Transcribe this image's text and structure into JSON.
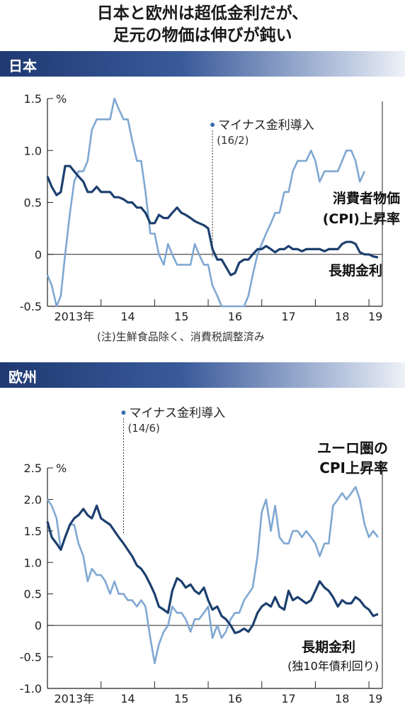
{
  "title_line1": "日本と欧州は超低金利だが、",
  "title_line2": "足元の物価は伸びが鈍い",
  "colors": {
    "band_dark": "#1f3a73",
    "cpi": "#7fa8d2",
    "rate": "#1c3f6e",
    "axis": "#222222"
  },
  "chart_data": [
    {
      "type": "line",
      "section_label": "日本",
      "unit": "%",
      "ylim": [
        -0.5,
        1.5
      ],
      "yticks": [
        "1.5",
        "1.0",
        "0.5",
        "0",
        "-0.5"
      ],
      "ytick_values": [
        1.5,
        1.0,
        0.5,
        0,
        -0.5
      ],
      "x_labels": [
        "2013年",
        "14",
        "15",
        "16",
        "17",
        "18",
        "19"
      ],
      "xlim": [
        2013.0,
        2019.25
      ],
      "annotation": {
        "line1": "マイナス金利導入",
        "line2": "(16/2)",
        "x": 2016.08
      },
      "note": "(注)生鮮食品除く、消費税調整済み",
      "series": [
        {
          "name": "消費者物価(CPI)上昇率",
          "label_line1": "消費者物価",
          "label_line2": "(CPI)上昇率",
          "x": [
            2013.0,
            2013.08,
            2013.17,
            2013.25,
            2013.33,
            2013.42,
            2013.5,
            2013.58,
            2013.67,
            2013.75,
            2013.83,
            2013.92,
            2014.0,
            2014.08,
            2014.17,
            2014.25,
            2014.33,
            2014.42,
            2014.5,
            2014.58,
            2014.67,
            2014.75,
            2014.83,
            2014.92,
            2015.0,
            2015.08,
            2015.17,
            2015.25,
            2015.33,
            2015.42,
            2015.5,
            2015.58,
            2015.67,
            2015.75,
            2015.83,
            2015.92,
            2016.0,
            2016.08,
            2016.17,
            2016.25,
            2016.33,
            2016.42,
            2016.5,
            2016.58,
            2016.67,
            2016.75,
            2016.83,
            2016.92,
            2017.0,
            2017.08,
            2017.17,
            2017.25,
            2017.33,
            2017.42,
            2017.5,
            2017.58,
            2017.67,
            2017.75,
            2017.83,
            2017.92,
            2018.0,
            2018.08,
            2018.17,
            2018.25,
            2018.33,
            2018.42,
            2018.5,
            2018.58,
            2018.67,
            2018.75,
            2018.83,
            2018.92
          ],
          "values": [
            -0.2,
            -0.3,
            -0.5,
            -0.4,
            0.0,
            0.4,
            0.7,
            0.8,
            0.8,
            0.9,
            1.2,
            1.3,
            1.3,
            1.3,
            1.3,
            1.5,
            1.4,
            1.3,
            1.3,
            1.1,
            0.9,
            0.9,
            0.6,
            0.2,
            0.2,
            0.0,
            -0.1,
            0.1,
            0.0,
            -0.1,
            -0.1,
            -0.1,
            -0.1,
            0.1,
            0.0,
            -0.1,
            -0.1,
            -0.3,
            -0.4,
            -0.5,
            -0.5,
            -0.5,
            -0.5,
            -0.5,
            -0.5,
            -0.4,
            -0.2,
            0.0,
            0.1,
            0.2,
            0.3,
            0.4,
            0.4,
            0.6,
            0.6,
            0.8,
            0.9,
            0.9,
            0.9,
            1.0,
            0.9,
            0.7,
            0.8,
            0.8,
            0.8,
            0.8,
            0.9,
            1.0,
            1.0,
            0.9,
            0.7,
            0.8
          ]
        },
        {
          "name": "長期金利",
          "label_line1": "長期金利",
          "x": [
            2013.0,
            2013.08,
            2013.17,
            2013.25,
            2013.33,
            2013.42,
            2013.5,
            2013.58,
            2013.67,
            2013.75,
            2013.83,
            2013.92,
            2014.0,
            2014.08,
            2014.17,
            2014.25,
            2014.33,
            2014.42,
            2014.5,
            2014.58,
            2014.67,
            2014.75,
            2014.83,
            2014.92,
            2015.0,
            2015.08,
            2015.17,
            2015.25,
            2015.33,
            2015.42,
            2015.5,
            2015.58,
            2015.67,
            2015.75,
            2015.83,
            2015.92,
            2016.0,
            2016.08,
            2016.17,
            2016.25,
            2016.33,
            2016.42,
            2016.5,
            2016.58,
            2016.67,
            2016.75,
            2016.83,
            2016.92,
            2017.0,
            2017.08,
            2017.17,
            2017.25,
            2017.33,
            2017.42,
            2017.5,
            2017.58,
            2017.67,
            2017.75,
            2017.83,
            2017.92,
            2018.0,
            2018.08,
            2018.17,
            2018.25,
            2018.33,
            2018.42,
            2018.5,
            2018.58,
            2018.67,
            2018.75,
            2018.83,
            2018.92,
            2019.0,
            2019.08,
            2019.17
          ],
          "values": [
            0.75,
            0.65,
            0.57,
            0.6,
            0.85,
            0.85,
            0.8,
            0.75,
            0.7,
            0.6,
            0.6,
            0.65,
            0.6,
            0.6,
            0.6,
            0.55,
            0.55,
            0.53,
            0.5,
            0.5,
            0.45,
            0.45,
            0.4,
            0.3,
            0.3,
            0.38,
            0.35,
            0.35,
            0.4,
            0.45,
            0.4,
            0.38,
            0.35,
            0.32,
            0.3,
            0.28,
            0.25,
            0.05,
            -0.05,
            -0.05,
            -0.12,
            -0.2,
            -0.18,
            -0.08,
            -0.05,
            -0.05,
            0.0,
            0.05,
            0.05,
            0.08,
            0.05,
            0.02,
            0.05,
            0.05,
            0.08,
            0.05,
            0.05,
            0.03,
            0.05,
            0.05,
            0.05,
            0.05,
            0.03,
            0.05,
            0.05,
            0.05,
            0.1,
            0.12,
            0.12,
            0.1,
            0.02,
            0.0,
            0.0,
            -0.02,
            -0.03
          ]
        }
      ]
    },
    {
      "type": "line",
      "section_label": "欧州",
      "unit": "%",
      "ylim": [
        -1.0,
        2.5
      ],
      "yticks": [
        "2.5",
        "2.0",
        "1.5",
        "1.0",
        "0.5",
        "0",
        "-0.5",
        "-1.0"
      ],
      "ytick_values": [
        2.5,
        2.0,
        1.5,
        1.0,
        0.5,
        0,
        -0.5,
        -1.0
      ],
      "x_labels": [
        "2013年",
        "14",
        "15",
        "16",
        "17",
        "18",
        "19"
      ],
      "xlim": [
        2013.0,
        2019.25
      ],
      "annotation": {
        "line1": "マイナス金利導入",
        "line2": "(14/6)",
        "x": 2014.42
      },
      "series": [
        {
          "name": "ユーロ圏のCPI上昇率",
          "label_line1": "ユーロ圏の",
          "label_line2": "CPI上昇率",
          "x": [
            2013.0,
            2013.08,
            2013.17,
            2013.25,
            2013.33,
            2013.42,
            2013.5,
            2013.58,
            2013.67,
            2013.75,
            2013.83,
            2013.92,
            2014.0,
            2014.08,
            2014.17,
            2014.25,
            2014.33,
            2014.42,
            2014.5,
            2014.58,
            2014.67,
            2014.75,
            2014.83,
            2014.92,
            2015.0,
            2015.08,
            2015.17,
            2015.25,
            2015.33,
            2015.42,
            2015.5,
            2015.58,
            2015.67,
            2015.75,
            2015.83,
            2015.92,
            2016.0,
            2016.08,
            2016.17,
            2016.25,
            2016.33,
            2016.42,
            2016.5,
            2016.58,
            2016.67,
            2016.75,
            2016.83,
            2016.92,
            2017.0,
            2017.08,
            2017.17,
            2017.25,
            2017.33,
            2017.42,
            2017.5,
            2017.58,
            2017.67,
            2017.75,
            2017.83,
            2017.92,
            2018.0,
            2018.08,
            2018.17,
            2018.25,
            2018.33,
            2018.42,
            2018.5,
            2018.58,
            2018.67,
            2018.75,
            2018.83,
            2018.92,
            2019.0,
            2019.08,
            2019.17
          ],
          "values": [
            2.0,
            1.9,
            1.7,
            1.2,
            1.4,
            1.6,
            1.6,
            1.3,
            1.1,
            0.7,
            0.9,
            0.8,
            0.8,
            0.7,
            0.5,
            0.7,
            0.5,
            0.5,
            0.4,
            0.4,
            0.3,
            0.4,
            0.3,
            -0.2,
            -0.6,
            -0.3,
            -0.1,
            0.0,
            0.3,
            0.2,
            0.2,
            0.1,
            -0.1,
            0.1,
            0.1,
            0.2,
            0.3,
            -0.2,
            0.0,
            -0.2,
            -0.1,
            0.1,
            0.2,
            0.2,
            0.4,
            0.5,
            0.6,
            1.1,
            1.8,
            2.0,
            1.5,
            1.9,
            1.4,
            1.3,
            1.3,
            1.5,
            1.5,
            1.4,
            1.5,
            1.4,
            1.3,
            1.1,
            1.3,
            1.3,
            1.9,
            2.0,
            2.1,
            2.0,
            2.1,
            2.2,
            2.0,
            1.6,
            1.4,
            1.5,
            1.4
          ]
        },
        {
          "name": "長期金利",
          "label_line1": "長期金利",
          "label_line2": "(独10年債利回り)",
          "x": [
            2013.0,
            2013.08,
            2013.17,
            2013.25,
            2013.33,
            2013.42,
            2013.5,
            2013.58,
            2013.67,
            2013.75,
            2013.83,
            2013.92,
            2014.0,
            2014.08,
            2014.17,
            2014.25,
            2014.33,
            2014.42,
            2014.5,
            2014.58,
            2014.67,
            2014.75,
            2014.83,
            2014.92,
            2015.0,
            2015.08,
            2015.17,
            2015.25,
            2015.33,
            2015.42,
            2015.5,
            2015.58,
            2015.67,
            2015.75,
            2015.83,
            2015.92,
            2016.0,
            2016.08,
            2016.17,
            2016.25,
            2016.33,
            2016.42,
            2016.5,
            2016.58,
            2016.67,
            2016.75,
            2016.83,
            2016.92,
            2017.0,
            2017.08,
            2017.17,
            2017.25,
            2017.33,
            2017.42,
            2017.5,
            2017.58,
            2017.67,
            2017.75,
            2017.83,
            2017.92,
            2018.0,
            2018.08,
            2018.17,
            2018.25,
            2018.33,
            2018.42,
            2018.5,
            2018.58,
            2018.67,
            2018.75,
            2018.83,
            2018.92,
            2019.0,
            2019.08,
            2019.17
          ],
          "values": [
            1.65,
            1.4,
            1.3,
            1.2,
            1.4,
            1.6,
            1.7,
            1.75,
            1.85,
            1.75,
            1.7,
            1.9,
            1.7,
            1.65,
            1.6,
            1.5,
            1.4,
            1.3,
            1.2,
            1.1,
            0.95,
            0.9,
            0.8,
            0.65,
            0.5,
            0.3,
            0.25,
            0.2,
            0.55,
            0.75,
            0.7,
            0.6,
            0.65,
            0.55,
            0.5,
            0.6,
            0.4,
            0.25,
            0.3,
            0.15,
            0.1,
            0.0,
            -0.12,
            -0.1,
            -0.05,
            -0.1,
            0.0,
            0.2,
            0.3,
            0.35,
            0.3,
            0.45,
            0.3,
            0.25,
            0.55,
            0.4,
            0.45,
            0.4,
            0.35,
            0.4,
            0.55,
            0.7,
            0.6,
            0.55,
            0.45,
            0.3,
            0.4,
            0.35,
            0.35,
            0.45,
            0.4,
            0.3,
            0.25,
            0.15,
            0.18
          ]
        }
      ]
    }
  ]
}
